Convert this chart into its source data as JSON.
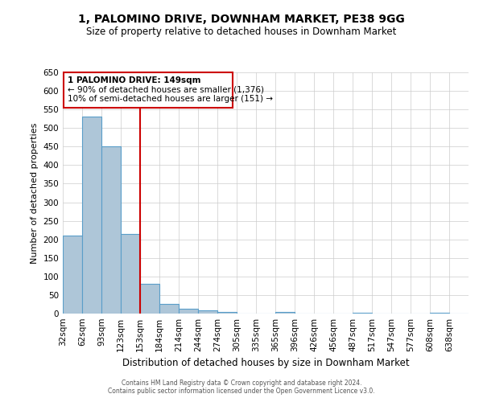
{
  "title": "1, PALOMINO DRIVE, DOWNHAM MARKET, PE38 9GG",
  "subtitle": "Size of property relative to detached houses in Downham Market",
  "xlabel": "Distribution of detached houses by size in Downham Market",
  "ylabel": "Number of detached properties",
  "bin_labels": [
    "32sqm",
    "62sqm",
    "93sqm",
    "123sqm",
    "153sqm",
    "184sqm",
    "214sqm",
    "244sqm",
    "274sqm",
    "305sqm",
    "335sqm",
    "365sqm",
    "396sqm",
    "426sqm",
    "456sqm",
    "487sqm",
    "517sqm",
    "547sqm",
    "577sqm",
    "608sqm",
    "638sqm"
  ],
  "bin_values": [
    210,
    530,
    450,
    215,
    80,
    27,
    14,
    8,
    5,
    0,
    0,
    4,
    0,
    0,
    0,
    2,
    0,
    0,
    0,
    3,
    0
  ],
  "bar_color": "#aec6d8",
  "bar_edge_color": "#5a9ec9",
  "vline_x": 4,
  "vline_color": "#cc0000",
  "ylim": [
    0,
    650
  ],
  "yticks": [
    0,
    50,
    100,
    150,
    200,
    250,
    300,
    350,
    400,
    450,
    500,
    550,
    600,
    650
  ],
  "annotation_title": "1 PALOMINO DRIVE: 149sqm",
  "annotation_line1": "← 90% of detached houses are smaller (1,376)",
  "annotation_line2": "10% of semi-detached houses are larger (151) →",
  "annotation_box_color": "#cc0000",
  "footer_line1": "Contains HM Land Registry data © Crown copyright and database right 2024.",
  "footer_line2": "Contains public sector information licensed under the Open Government Licence v3.0.",
  "background_color": "#ffffff",
  "grid_color": "#cccccc"
}
